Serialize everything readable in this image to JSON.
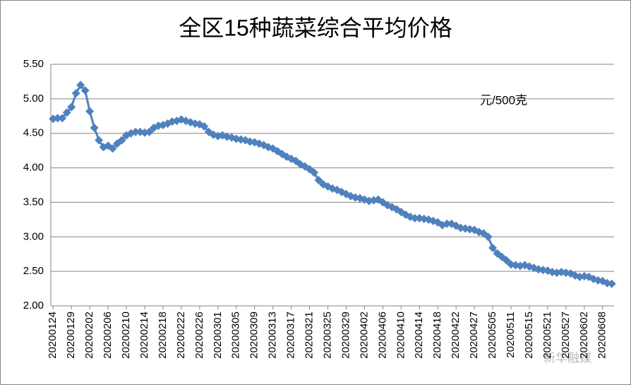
{
  "chart_data": {
    "type": "line",
    "title": "全区15种蔬菜综合平均价格",
    "annotation": "元/500克",
    "watermark": "新华融媒",
    "categories": [
      "20200124",
      null,
      null,
      null,
      "20200129",
      null,
      null,
      null,
      "20200202",
      null,
      null,
      null,
      "20200206",
      null,
      null,
      null,
      "20200210",
      null,
      null,
      null,
      "20200214",
      null,
      null,
      null,
      "20200218",
      null,
      null,
      null,
      "20200222",
      null,
      null,
      null,
      "20200226",
      null,
      null,
      null,
      "20200301",
      null,
      null,
      null,
      "20200305",
      null,
      null,
      null,
      "20200309",
      null,
      null,
      null,
      "20200313",
      null,
      null,
      null,
      "20200317",
      null,
      null,
      null,
      "20200321",
      null,
      null,
      null,
      "20200325",
      null,
      null,
      null,
      "20200329",
      null,
      null,
      null,
      "20200402",
      null,
      null,
      null,
      "20200406",
      null,
      null,
      null,
      "20200410",
      null,
      null,
      null,
      "20200414",
      null,
      null,
      null,
      "20200418",
      null,
      null,
      null,
      "20200422",
      null,
      null,
      null,
      "20200427",
      null,
      null,
      null,
      "20200505",
      null,
      null,
      null,
      "20200511",
      null,
      null,
      null,
      "20200515",
      null,
      null,
      null,
      "20200521",
      null,
      null,
      null,
      "20200527",
      null,
      null,
      null,
      "20200602",
      null,
      null,
      null,
      "20200608",
      null,
      null
    ],
    "series": [
      {
        "color": "#4f81bd",
        "values": [
          4.71,
          4.72,
          4.72,
          4.8,
          4.88,
          5.08,
          5.2,
          5.12,
          4.82,
          4.58,
          4.4,
          4.3,
          4.32,
          4.28,
          4.35,
          4.4,
          4.47,
          4.5,
          4.52,
          4.52,
          4.51,
          4.52,
          4.58,
          4.61,
          4.62,
          4.64,
          4.67,
          4.68,
          4.7,
          4.68,
          4.66,
          4.64,
          4.63,
          4.6,
          4.52,
          4.48,
          4.46,
          4.47,
          4.45,
          4.44,
          4.42,
          4.41,
          4.4,
          4.38,
          4.37,
          4.35,
          4.33,
          4.3,
          4.28,
          4.24,
          4.2,
          4.16,
          4.13,
          4.1,
          4.05,
          4.02,
          3.98,
          3.93,
          3.82,
          3.76,
          3.73,
          3.7,
          3.68,
          3.65,
          3.62,
          3.59,
          3.57,
          3.56,
          3.54,
          3.52,
          3.53,
          3.54,
          3.5,
          3.46,
          3.43,
          3.4,
          3.36,
          3.32,
          3.29,
          3.27,
          3.27,
          3.26,
          3.25,
          3.23,
          3.21,
          3.17,
          3.19,
          3.19,
          3.16,
          3.13,
          3.12,
          3.11,
          3.1,
          3.07,
          3.05,
          3.0,
          2.84,
          2.76,
          2.71,
          2.66,
          2.6,
          2.59,
          2.58,
          2.59,
          2.57,
          2.55,
          2.53,
          2.52,
          2.51,
          2.49,
          2.48,
          2.49,
          2.48,
          2.47,
          2.44,
          2.42,
          2.43,
          2.42,
          2.39,
          2.37,
          2.36,
          2.33,
          2.32
        ]
      }
    ],
    "ylim": [
      2,
      5.5
    ],
    "yticks": [
      {
        "value": 2,
        "label": "2.00"
      },
      {
        "value": 2.5,
        "label": "2.50"
      },
      {
        "value": 3,
        "label": "3.00"
      },
      {
        "value": 3.5,
        "label": "3.50"
      },
      {
        "value": 4,
        "label": "4.00"
      },
      {
        "value": 4.5,
        "label": "4.50"
      },
      {
        "value": 5,
        "label": "5.00"
      },
      {
        "value": 5.5,
        "label": "5.50"
      }
    ],
    "grid": true
  }
}
